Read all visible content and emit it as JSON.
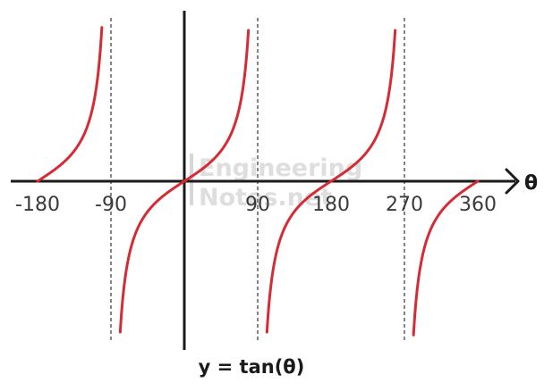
{
  "chart_data": {
    "type": "line",
    "title": "",
    "caption": "y = tan(θ)",
    "xlabel": "θ",
    "ylabel": "",
    "xlim": [
      -180,
      360
    ],
    "ylim": [
      -5,
      5
    ],
    "x_ticks": [
      -180,
      -90,
      90,
      180,
      270,
      360
    ],
    "x_tick_labels": [
      "-180",
      "-90",
      "90",
      "180",
      "270",
      "360"
    ],
    "asymptotes": [
      -90,
      90,
      270
    ],
    "grid": false,
    "legend": "none",
    "series": [
      {
        "function": "tan",
        "color": "#d62b35",
        "segments": [
          {
            "x": [
              -180,
              -170,
              -160,
              -150,
              -140,
              -130,
              -120,
              -110,
              -100,
              -95
            ],
            "y": [
              0,
              0.18,
              0.36,
              0.58,
              0.84,
              1.19,
              1.73,
              2.75,
              5.67,
              11.43
            ]
          },
          {
            "x": [
              -85,
              -80,
              -70,
              -60,
              -45,
              -30,
              -15,
              0,
              15,
              30,
              45,
              60,
              70,
              80,
              85
            ],
            "y": [
              -11.43,
              -5.67,
              -2.75,
              -1.73,
              -1,
              -0.58,
              -0.27,
              0,
              0.27,
              0.58,
              1,
              1.73,
              2.75,
              5.67,
              11.43
            ]
          },
          {
            "x": [
              95,
              100,
              110,
              120,
              135,
              150,
              165,
              180,
              195,
              210,
              225,
              240,
              250,
              260,
              265
            ],
            "y": [
              -11.43,
              -5.67,
              -2.75,
              -1.73,
              -1,
              -0.58,
              -0.27,
              0,
              0.27,
              0.58,
              1,
              1.73,
              2.75,
              5.67,
              11.43
            ]
          },
          {
            "x": [
              275,
              280,
              290,
              300,
              315,
              330,
              345,
              360
            ],
            "y": [
              -11.43,
              -5.67,
              -2.75,
              -1.73,
              -1,
              -0.58,
              -0.27,
              0
            ]
          }
        ]
      }
    ]
  },
  "watermark": {
    "line1": "Engineering",
    "line2": "Notes.net"
  },
  "colors": {
    "curve": "#d62b35",
    "axis": "#1a1a1a",
    "asymptote": "#333333"
  }
}
